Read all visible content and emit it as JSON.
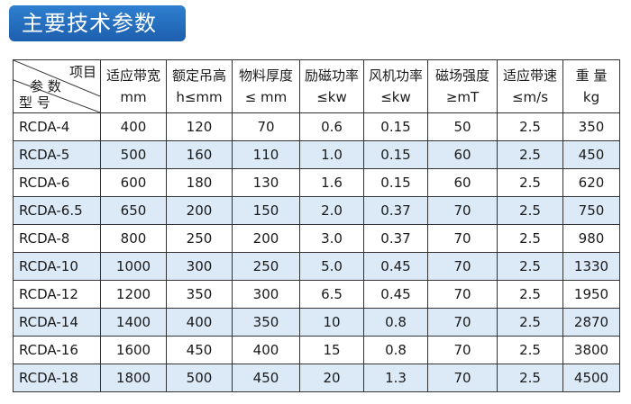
{
  "title": "主要技术参数",
  "header": {
    "corner_item": "项目",
    "corner_param": "参 数",
    "corner_model": "型 号",
    "columns": [
      {
        "name": "适应带宽",
        "unit": "mm"
      },
      {
        "name": "额定吊高",
        "unit": "h≤mm"
      },
      {
        "name": "物料厚度",
        "unit": "≤ mm"
      },
      {
        "name": "励磁功率",
        "unit": "≤kw"
      },
      {
        "name": "风机功率",
        "unit": "≤kw"
      },
      {
        "name": "磁场强度",
        "unit": "≥mT"
      },
      {
        "name": "适应带速",
        "unit": "≤m/s"
      },
      {
        "name": "重 量",
        "unit": "kg"
      }
    ]
  },
  "rows": [
    {
      "model": "RCDA-4",
      "values": [
        "400",
        "120",
        "70",
        "0.6",
        "0.15",
        "50",
        "2.5",
        "350"
      ]
    },
    {
      "model": "RCDA-5",
      "values": [
        "500",
        "160",
        "110",
        "1.0",
        "0.15",
        "60",
        "2.5",
        "450"
      ]
    },
    {
      "model": "RCDA-6",
      "values": [
        "600",
        "180",
        "130",
        "1.6",
        "0.15",
        "60",
        "2.5",
        "620"
      ]
    },
    {
      "model": "RCDA-6.5",
      "values": [
        "650",
        "200",
        "150",
        "2.0",
        "0.37",
        "70",
        "2.5",
        "750"
      ]
    },
    {
      "model": "RCDA-8",
      "values": [
        "800",
        "250",
        "200",
        "3.0",
        "0.37",
        "70",
        "2.5",
        "980"
      ]
    },
    {
      "model": "RCDA-10",
      "values": [
        "1000",
        "300",
        "250",
        "5.0",
        "0.45",
        "70",
        "2.5",
        "1330"
      ]
    },
    {
      "model": "RCDA-12",
      "values": [
        "1200",
        "350",
        "300",
        "6.5",
        "0.45",
        "70",
        "2.5",
        "1950"
      ]
    },
    {
      "model": "RCDA-14",
      "values": [
        "1400",
        "400",
        "350",
        "10",
        "0.8",
        "70",
        "2.5",
        "2870"
      ]
    },
    {
      "model": "RCDA-16",
      "values": [
        "1600",
        "450",
        "400",
        "15",
        "0.8",
        "70",
        "2.5",
        "3800"
      ]
    },
    {
      "model": "RCDA-18",
      "values": [
        "1800",
        "500",
        "450",
        "20",
        "1.3",
        "70",
        "2.5",
        "4500"
      ]
    }
  ],
  "colors": {
    "title_bg": "#1d5fae",
    "row_stripe": "#dce9f7",
    "border": "#333333"
  }
}
